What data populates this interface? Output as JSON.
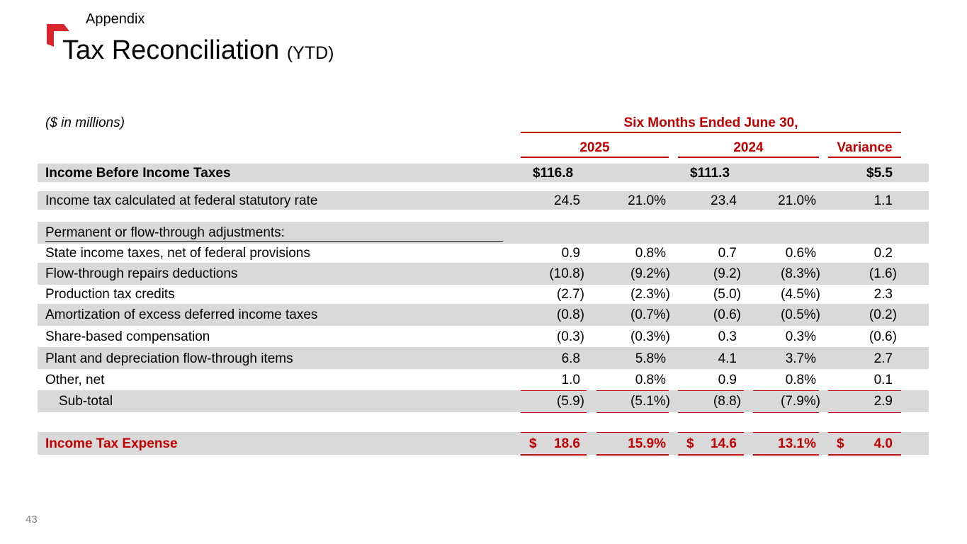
{
  "header": {
    "section": "Appendix",
    "title": "Tax Reconciliation",
    "title_suffix": "(YTD)"
  },
  "table": {
    "units": "($ in millions)",
    "period_header": "Six Months Ended June 30,",
    "columns": [
      "2025",
      "2024",
      "Variance"
    ],
    "rows": [
      {
        "label": "Income Before Income Taxes",
        "v2025": "$116.8",
        "p2025": "",
        "v2024": "$111.3",
        "p2024": "",
        "var": "$5.5"
      },
      {
        "label": "Income tax calculated at federal statutory rate",
        "v2025": "24.5",
        "p2025": "21.0%",
        "v2024": "23.4",
        "p2024": "21.0%",
        "var": "1.1"
      },
      {
        "label": "Permanent or flow-through adjustments:",
        "v2025": "",
        "p2025": "",
        "v2024": "",
        "p2024": "",
        "var": ""
      },
      {
        "label": "State income taxes, net of federal provisions",
        "v2025": "0.9",
        "p2025": "0.8%",
        "v2024": "0.7",
        "p2024": "0.6%",
        "var": "0.2"
      },
      {
        "label": "Flow-through repairs deductions",
        "v2025": "(10.8)",
        "p2025": "(9.2%)",
        "v2024": "(9.2)",
        "p2024": "(8.3%)",
        "var": "(1.6)"
      },
      {
        "label": "Production tax credits",
        "v2025": "(2.7)",
        "p2025": "(2.3%)",
        "v2024": "(5.0)",
        "p2024": "(4.5%)",
        "var": "2.3"
      },
      {
        "label": "Amortization of excess deferred income taxes",
        "v2025": "(0.8)",
        "p2025": "(0.7%)",
        "v2024": "(0.6)",
        "p2024": "(0.5%)",
        "var": "(0.2)"
      },
      {
        "label": "Share-based compensation",
        "v2025": "(0.3)",
        "p2025": "(0.3%)",
        "v2024": "0.3",
        "p2024": "0.3%",
        "var": "(0.6)"
      },
      {
        "label": "Plant and depreciation flow-through items",
        "v2025": "6.8",
        "p2025": "5.8%",
        "v2024": "4.1",
        "p2024": "3.7%",
        "var": "2.7"
      },
      {
        "label": "Other, net",
        "v2025": "1.0",
        "p2025": "0.8%",
        "v2024": "0.9",
        "p2024": "0.8%",
        "var": "0.1"
      },
      {
        "label": "Sub-total",
        "v2025": "(5.9)",
        "p2025": "(5.1%)",
        "v2024": "(8.8)",
        "p2024": "(7.9%)",
        "var": "2.9"
      }
    ],
    "total": {
      "label": "Income Tax Expense",
      "cur_2025": "$",
      "v2025": "18.6",
      "p2025": "15.9%",
      "cur_2024": "$",
      "v2024": "14.6",
      "p2024": "13.1%",
      "cur_var": "$",
      "var": "4.0"
    }
  },
  "footer": {
    "page_number": "43"
  },
  "colors": {
    "accent": "#c00000",
    "band": "#d9d9d9",
    "logo": "#d9262e"
  }
}
